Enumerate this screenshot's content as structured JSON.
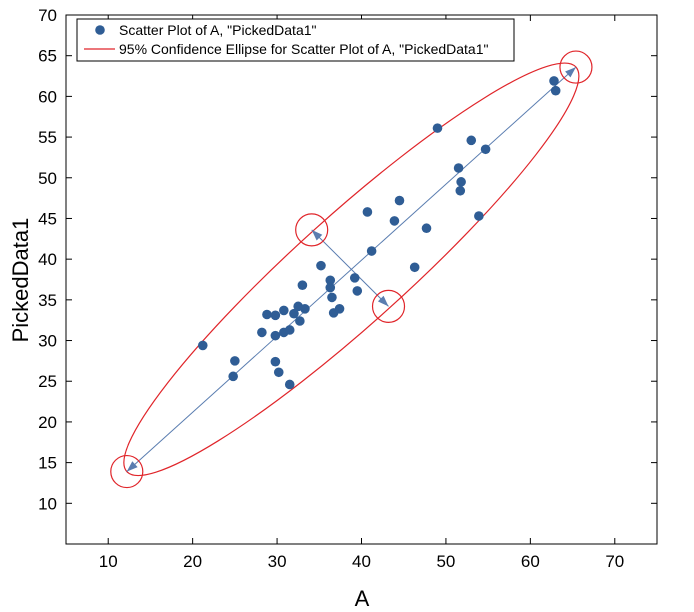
{
  "chart_data": {
    "type": "scatter",
    "xlabel": "A",
    "ylabel": "PickedData1",
    "xlim": [
      5,
      75
    ],
    "ylim": [
      5,
      70
    ],
    "x_ticks": [
      10,
      20,
      30,
      40,
      50,
      60,
      70
    ],
    "y_ticks": [
      10,
      15,
      20,
      25,
      30,
      35,
      40,
      45,
      50,
      55,
      60,
      65,
      70
    ],
    "grid": false,
    "legend_placement": "top-left",
    "colors": {
      "points": "#2f5d95",
      "ellipse": "#e0252a",
      "axis_line": "#5a7db0"
    },
    "series": [
      {
        "name": "Scatter Plot of A, \"PickedData1\"",
        "x": [
          21.2,
          24.8,
          25.0,
          28.2,
          28.8,
          29.8,
          29.8,
          29.8,
          30.2,
          30.8,
          30.8,
          31.5,
          31.5,
          32.0,
          32.5,
          32.7,
          33.0,
          33.3,
          35.2,
          36.3,
          36.3,
          36.5,
          36.7,
          37.4,
          39.2,
          39.5,
          40.7,
          41.2,
          43.9,
          44.5,
          46.3,
          47.7,
          49.0,
          51.5,
          51.7,
          51.8,
          53.0,
          53.9,
          54.7,
          62.8,
          63.0
        ],
        "y": [
          29.4,
          25.6,
          27.5,
          31.0,
          33.2,
          27.4,
          30.6,
          33.1,
          26.1,
          31.0,
          33.7,
          24.6,
          31.3,
          33.3,
          34.2,
          32.4,
          36.8,
          33.9,
          39.2,
          37.4,
          36.5,
          35.3,
          33.4,
          33.9,
          37.7,
          36.1,
          45.8,
          41.0,
          44.7,
          47.2,
          39.0,
          43.8,
          56.1,
          51.2,
          48.4,
          49.5,
          54.6,
          45.3,
          53.5,
          61.9,
          60.7
        ]
      }
    ],
    "ellipse": {
      "name": "95% Confidence Ellipse for Scatter Plot of A, \"PickedData1\"",
      "major_axis": [
        [
          12.2,
          13.9
        ],
        [
          65.4,
          63.6
        ]
      ],
      "minor_axis": [
        [
          34.1,
          43.6
        ],
        [
          43.2,
          34.2
        ]
      ]
    }
  }
}
